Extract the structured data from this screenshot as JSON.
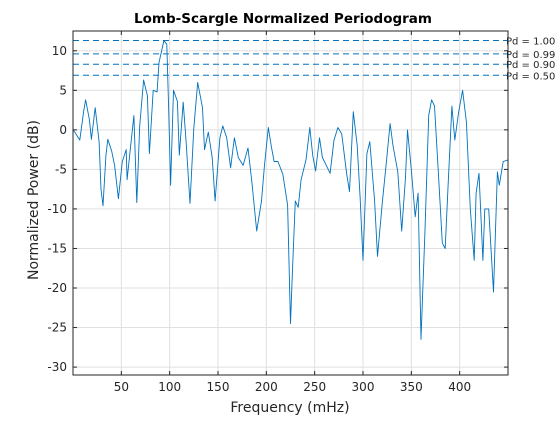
{
  "chart_data": {
    "type": "line",
    "title": "Lomb-Scargle Normalized Periodogram",
    "xlabel": "Frequency (mHz)",
    "ylabel": "Normalized Power (dB)",
    "xlim": [
      0,
      450
    ],
    "ylim": [
      -31,
      12.5
    ],
    "xticks": [
      50,
      100,
      150,
      200,
      250,
      300,
      350,
      400
    ],
    "yticks": [
      10,
      5,
      0,
      -5,
      -10,
      -15,
      -20,
      -25,
      -30
    ],
    "grid": true,
    "colors": {
      "line": "#0072BD",
      "grid": "#dfdfdf",
      "axis": "#262626"
    },
    "thresholds": [
      {
        "label": "Pd = 1.00",
        "y": 11.3
      },
      {
        "label": "Pd = 0.99",
        "y": 9.6
      },
      {
        "label": "Pd = 0.90",
        "y": 8.3
      },
      {
        "label": "Pd = 0.50",
        "y": 6.9
      }
    ],
    "series": [
      {
        "points": [
          [
            0,
            0
          ],
          [
            2,
            -0.3
          ],
          [
            7,
            -1.3
          ],
          [
            11,
            2.3
          ],
          [
            13,
            3.8
          ],
          [
            17,
            1.3
          ],
          [
            19,
            -1.2
          ],
          [
            23,
            2.8
          ],
          [
            27,
            -1.5
          ],
          [
            29,
            -7.5
          ],
          [
            31,
            -9.6
          ],
          [
            34,
            -3.3
          ],
          [
            36,
            -1.2
          ],
          [
            40,
            -2.7
          ],
          [
            43,
            -4.5
          ],
          [
            47,
            -8.7
          ],
          [
            51,
            -4.0
          ],
          [
            55,
            -2.5
          ],
          [
            56,
            -6.3
          ],
          [
            59,
            -2.8
          ],
          [
            63,
            1.8
          ],
          [
            66,
            -9.2
          ],
          [
            69,
            0.5
          ],
          [
            73,
            6.3
          ],
          [
            77,
            4.3
          ],
          [
            79,
            -3.0
          ],
          [
            83,
            5.0
          ],
          [
            87,
            4.8
          ],
          [
            89,
            8.5
          ],
          [
            94,
            11.3
          ],
          [
            97,
            10.8
          ],
          [
            99,
            2.5
          ],
          [
            101,
            -7.0
          ],
          [
            104,
            5.0
          ],
          [
            108,
            3.6
          ],
          [
            110,
            -3.2
          ],
          [
            114,
            3.5
          ],
          [
            117,
            -1.5
          ],
          [
            121,
            -9.3
          ],
          [
            125,
            0.2
          ],
          [
            129,
            6.0
          ],
          [
            134,
            2.8
          ],
          [
            136,
            -2.5
          ],
          [
            140,
            -0.3
          ],
          [
            144,
            -3.5
          ],
          [
            147,
            -9.0
          ],
          [
            152,
            -1.0
          ],
          [
            155,
            0.5
          ],
          [
            159,
            -1.0
          ],
          [
            163,
            -4.8
          ],
          [
            167,
            -1.0
          ],
          [
            171,
            -3.5
          ],
          [
            176,
            -4.5
          ],
          [
            181,
            -2.3
          ],
          [
            185,
            -6.5
          ],
          [
            190,
            -12.8
          ],
          [
            195,
            -9.0
          ],
          [
            198,
            -4.6
          ],
          [
            202,
            0.3
          ],
          [
            205,
            -2.0
          ],
          [
            208,
            -4.0
          ],
          [
            212,
            -4.0
          ],
          [
            217,
            -5.6
          ],
          [
            222,
            -9.5
          ],
          [
            225,
            -24.5
          ],
          [
            227,
            -18.0
          ],
          [
            230,
            -9.0
          ],
          [
            233,
            -9.8
          ],
          [
            236,
            -6.3
          ],
          [
            241,
            -3.8
          ],
          [
            245,
            0.3
          ],
          [
            248,
            -3.2
          ],
          [
            251,
            -5.2
          ],
          [
            255,
            -1.0
          ],
          [
            258,
            -3.5
          ],
          [
            262,
            -4.5
          ],
          [
            266,
            -5.5
          ],
          [
            270,
            -1.3
          ],
          [
            274,
            0.3
          ],
          [
            278,
            -0.5
          ],
          [
            283,
            -5.5
          ],
          [
            286,
            -7.8
          ],
          [
            290,
            2.3
          ],
          [
            294,
            -2.0
          ],
          [
            297,
            -8.5
          ],
          [
            300,
            -16.5
          ],
          [
            304,
            -3.0
          ],
          [
            307,
            -1.5
          ],
          [
            312,
            -9.0
          ],
          [
            315,
            -16.0
          ],
          [
            320,
            -9.2
          ],
          [
            324,
            -4.3
          ],
          [
            328,
            0.8
          ],
          [
            331,
            -2.0
          ],
          [
            336,
            -5.3
          ],
          [
            340,
            -12.8
          ],
          [
            344,
            -6.0
          ],
          [
            346,
            0
          ],
          [
            350,
            -5.0
          ],
          [
            354,
            -11.0
          ],
          [
            357,
            -8.0
          ],
          [
            360,
            -26.5
          ],
          [
            364,
            -13.0
          ],
          [
            368,
            1.8
          ],
          [
            371,
            3.8
          ],
          [
            374,
            3.0
          ],
          [
            378,
            -5.5
          ],
          [
            382,
            -14.3
          ],
          [
            385,
            -15.0
          ],
          [
            388,
            -7.0
          ],
          [
            392,
            3.0
          ],
          [
            395,
            -1.3
          ],
          [
            399,
            2.3
          ],
          [
            403,
            5.0
          ],
          [
            407,
            1.0
          ],
          [
            411,
            -10.0
          ],
          [
            415,
            -16.5
          ],
          [
            417,
            -8.0
          ],
          [
            420,
            -5.5
          ],
          [
            424,
            -16.5
          ],
          [
            426,
            -10.0
          ],
          [
            430,
            -10.0
          ],
          [
            435,
            -20.5
          ],
          [
            439,
            -5.3
          ],
          [
            441,
            -7.0
          ],
          [
            445,
            -4.0
          ],
          [
            450,
            -3.8
          ]
        ]
      }
    ]
  }
}
